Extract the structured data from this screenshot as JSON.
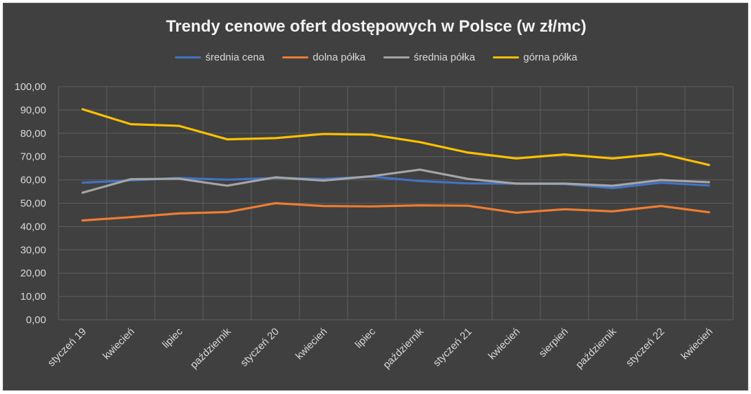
{
  "chart_data": {
    "type": "line",
    "title": "Trendy cenowe ofert dostępowych w Polsce (w zł/mc)",
    "xlabel": "",
    "ylabel": "",
    "categories": [
      "styczeń 19",
      "kwiecień",
      "lipiec",
      "październik",
      "styczeń 20",
      "kwiecień",
      "lipiec",
      "październik",
      "styczeń 21",
      "kwiecień",
      "sierpień",
      "październik",
      "styczeń 22",
      "kwiecień"
    ],
    "ylim": [
      0,
      100
    ],
    "yticks": [
      "0,00",
      "10,00",
      "20,00",
      "30,00",
      "40,00",
      "50,00",
      "60,00",
      "70,00",
      "80,00",
      "90,00",
      "100,00"
    ],
    "grid": true,
    "legend_position": "top",
    "series": [
      {
        "name": "średnia cena",
        "color": "#4472c4",
        "values": [
          58.8,
          59.8,
          60.8,
          60.1,
          60.8,
          60.4,
          61.4,
          59.5,
          58.5,
          58.4,
          58.2,
          56.5,
          58.8,
          57.6
        ]
      },
      {
        "name": "dolna półka",
        "color": "#ed7d31",
        "values": [
          42.6,
          44.0,
          45.6,
          46.2,
          50.0,
          48.8,
          48.6,
          49.1,
          48.9,
          45.9,
          47.4,
          46.5,
          48.8,
          46.1
        ]
      },
      {
        "name": "średnia półka",
        "color": "#a5a5a5",
        "values": [
          54.5,
          60.3,
          60.5,
          57.5,
          61.1,
          59.7,
          61.6,
          64.4,
          60.4,
          58.4,
          58.4,
          57.5,
          59.9,
          59.0
        ]
      },
      {
        "name": "górna półka",
        "color": "#ffc000",
        "values": [
          90.3,
          83.9,
          83.2,
          77.4,
          77.9,
          79.7,
          79.4,
          76.2,
          71.7,
          69.2,
          70.9,
          69.2,
          71.2,
          66.4
        ]
      }
    ]
  }
}
